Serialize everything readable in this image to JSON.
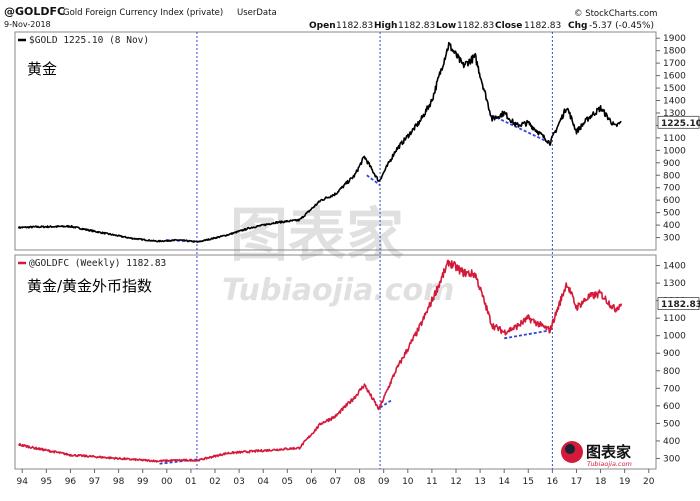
{
  "header": {
    "symbol": "@GOLDFC",
    "name": "Gold Foreign Currency Index (private)",
    "source": "UserData",
    "date": "9-Nov-2018",
    "open_label": "Open",
    "open": "1182.83",
    "high_label": "High",
    "high": "1182.83",
    "low_label": "Low",
    "low": "1182.83",
    "close_label": "Close",
    "close": "1182.83",
    "chg_label": "Chg",
    "chg": "-5.37 (-0.45%)",
    "copyright": "© StockCharts.com"
  },
  "colors": {
    "gold": "#000000",
    "goldfc": "#d41a3a",
    "guide": "#3344dd"
  },
  "watermark": {
    "cn": "图表家",
    "en": "Tubiaojia.com"
  },
  "logo": {
    "cn": "图表家",
    "en": "Tubiaojia.com"
  },
  "chart_data": [
    {
      "type": "line",
      "title": "黄金",
      "legend": "$GOLD 1225.10 (8 Nov)",
      "last_value": "1225.10",
      "ylim": [
        200,
        1950
      ],
      "yticks": [
        300,
        400,
        500,
        600,
        700,
        800,
        900,
        1000,
        1100,
        1200,
        1300,
        1400,
        1500,
        1600,
        1700,
        1800,
        1900
      ],
      "series": [
        {
          "x": [
            1993.85,
            1994.5,
            1996.0,
            1997.0,
            1998.5,
            1999.6,
            2000.5,
            2001.3,
            2002.5,
            2003.5,
            2004.5,
            2005.5,
            2006.4,
            2007.0,
            2007.8,
            2008.2,
            2008.8,
            2009.5,
            2010.5,
            2011.0,
            2011.7,
            2012.3,
            2012.8,
            2013.5,
            2014.0,
            2014.5,
            2015.0,
            2015.9,
            2016.6,
            2017.0,
            2017.5,
            2018.0,
            2018.6,
            2018.86
          ],
          "y": [
            380,
            385,
            390,
            350,
            295,
            270,
            280,
            265,
            320,
            380,
            420,
            440,
            600,
            650,
            800,
            950,
            750,
            1000,
            1230,
            1400,
            1850,
            1680,
            1750,
            1250,
            1300,
            1200,
            1220,
            1060,
            1350,
            1150,
            1260,
            1340,
            1190,
            1225
          ]
        }
      ]
    },
    {
      "type": "line",
      "title": "黄金/黄金外币指数",
      "legend": "@GOLDFC (Weekly) 1182.83",
      "last_value": "1182.83",
      "ylim": [
        240,
        1460
      ],
      "yticks": [
        300,
        400,
        500,
        600,
        700,
        800,
        900,
        1000,
        1100,
        1200,
        1300,
        1400
      ],
      "series": [
        {
          "x": [
            1993.85,
            1994.5,
            1996.0,
            1997.0,
            1998.5,
            1999.6,
            2000.5,
            2001.3,
            2002.5,
            2003.5,
            2004.5,
            2005.5,
            2006.4,
            2007.0,
            2007.8,
            2008.2,
            2008.8,
            2009.5,
            2010.5,
            2011.0,
            2011.7,
            2012.3,
            2012.8,
            2013.5,
            2014.0,
            2014.5,
            2015.0,
            2015.9,
            2016.6,
            2017.0,
            2017.5,
            2018.0,
            2018.6,
            2018.86
          ],
          "y": [
            380,
            360,
            320,
            310,
            295,
            285,
            290,
            290,
            330,
            340,
            350,
            360,
            500,
            540,
            650,
            720,
            580,
            800,
            1050,
            1200,
            1420,
            1360,
            1350,
            1060,
            1020,
            1050,
            1100,
            1030,
            1300,
            1160,
            1220,
            1240,
            1150,
            1182.83
          ]
        }
      ]
    }
  ],
  "x_axis": {
    "ticks": [
      1994,
      1995,
      1996,
      1997,
      1998,
      1999,
      2000,
      2001,
      2002,
      2003,
      2004,
      2005,
      2006,
      2007,
      2008,
      2009,
      2010,
      2011,
      2012,
      2013,
      2014,
      2015,
      2016,
      2017,
      2018,
      2019,
      2020
    ],
    "labels": [
      "94",
      "95",
      "96",
      "97",
      "98",
      "99",
      "00",
      "01",
      "02",
      "03",
      "04",
      "05",
      "06",
      "07",
      "08",
      "09",
      "10",
      "11",
      "12",
      "13",
      "14",
      "15",
      "16",
      "17",
      "18",
      "19",
      "20"
    ],
    "range": [
      1993.7,
      2020.3
    ]
  },
  "guides": {
    "vertical_x": [
      2001.25,
      2008.85,
      2016.0
    ],
    "top_segments": [
      [
        2000.0,
        280,
        2001.3,
        265
      ],
      [
        2008.3,
        800,
        2008.85,
        720
      ],
      [
        2013.5,
        1280,
        2015.9,
        1060
      ]
    ],
    "bottom_segments": [
      [
        1999.7,
        270,
        2001.3,
        295
      ],
      [
        2008.85,
        590,
        2009.3,
        630
      ],
      [
        2014.0,
        985,
        2015.9,
        1030
      ]
    ]
  }
}
